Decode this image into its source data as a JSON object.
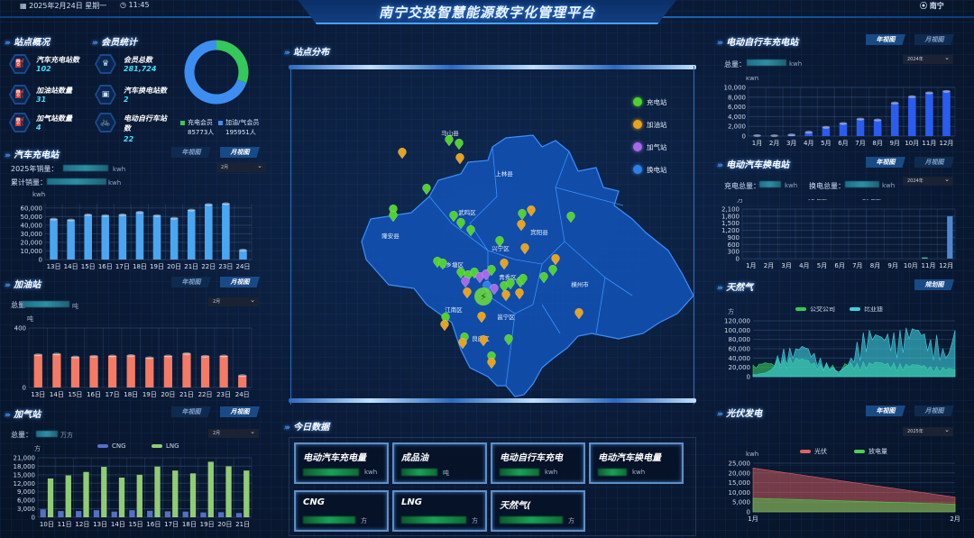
{
  "header": {
    "date": "2025年2月24日 星期一",
    "time": "11:45",
    "title": "南宁交投智慧能源数字化管理平台",
    "location": "南宁"
  },
  "overview": {
    "title": "站点概况",
    "items": [
      {
        "label": "汽车充电站数",
        "value": "102",
        "icon": "charging-pile-icon"
      },
      {
        "label": "加油站数量",
        "value": "31",
        "icon": "fuel-pump-icon"
      },
      {
        "label": "加气站数量",
        "value": "4",
        "icon": "gas-pump-icon"
      }
    ]
  },
  "members": {
    "title": "会员统计",
    "items": [
      {
        "label": "会员总数",
        "value": "281,724",
        "icon": "crown-icon"
      },
      {
        "label": "汽车换电站数",
        "value": "2",
        "icon": "battery-icon"
      },
      {
        "label": "电动自行车站数",
        "value": "22",
        "icon": "bike-icon"
      }
    ],
    "donut": [
      {
        "name": "充电会员",
        "value": 85773,
        "display": "85773人",
        "color": "#35c85a"
      },
      {
        "name": "加油/气会员",
        "value": 195951,
        "display": "195951人",
        "color": "#3d8ef0"
      }
    ]
  },
  "view_buttons": {
    "year": "年视图",
    "month": "月视图",
    "plan": "规划图"
  },
  "car_charging": {
    "title": "汽车充电站",
    "year_sales_label": "2025年销量：",
    "cum_sales_label": "累计销量：",
    "unit": "kwh",
    "dropdown": "2月"
  },
  "oil": {
    "title": "加油站",
    "total_label": "总量",
    "unit": "吨",
    "dropdown": "2月"
  },
  "gas": {
    "title": "加气站",
    "total_label": "总量：",
    "unit": "万方",
    "dropdown": "2月"
  },
  "ebike": {
    "title": "电动自行车充电站",
    "total_label": "总量：",
    "unit": "kwh",
    "dropdown": "2024年"
  },
  "swap": {
    "title": "电动汽车换电站",
    "charge_label": "充电总量：",
    "swap_label": "换电总量：",
    "unit": "kwh",
    "dropdown": "2024年"
  },
  "ngas": {
    "title": "天然气"
  },
  "pv": {
    "title": "光伏发电",
    "dropdown": "2025年"
  },
  "map": {
    "title": "站点分布",
    "legend": [
      {
        "label": "充电站",
        "color": "#4fd12f",
        "icon": "lightning-icon"
      },
      {
        "label": "加油站",
        "color": "#e8a21c",
        "icon": "fuel-icon"
      },
      {
        "label": "加气站",
        "color": "#a56ae8",
        "icon": "flame-icon"
      },
      {
        "label": "换电站",
        "color": "#2f7fe8",
        "icon": "battery-icon"
      }
    ],
    "districts": [
      "马山县",
      "上林县",
      "武鸣区",
      "宾阳县",
      "隆安县",
      "兴宁区",
      "西乡塘区",
      "青秀区",
      "江南区",
      "邕宁区",
      "良庆区",
      "横州市"
    ]
  },
  "today": {
    "title": "今日数据",
    "cards": [
      {
        "label": "电动汽车充电量",
        "unit": "kwh"
      },
      {
        "label": "成品油",
        "unit": "吨"
      },
      {
        "label": "电动自行车充电",
        "unit": "kwh"
      },
      {
        "label": "电动汽车换电量",
        "unit": "kwh"
      },
      {
        "label": "CNG",
        "unit": "方"
      },
      {
        "label": "LNG",
        "unit": "方"
      },
      {
        "label": "天然气(",
        "unit": "方"
      }
    ]
  },
  "chart_data": [
    {
      "id": "car",
      "type": "bar",
      "ylabel": "kwh",
      "categories": [
        "13日",
        "14日",
        "15日",
        "16日",
        "17日",
        "18日",
        "19日",
        "20日",
        "21日",
        "22日",
        "23日",
        "24日"
      ],
      "values": [
        47000,
        46000,
        52000,
        51000,
        52000,
        55000,
        51000,
        48000,
        57500,
        64000,
        65000,
        11000
      ],
      "ylim": [
        0,
        65000
      ],
      "yticks": [
        0,
        10000,
        20000,
        30000,
        40000,
        50000,
        60000
      ],
      "color": "#4aa6f0",
      "grid": true
    },
    {
      "id": "oil",
      "type": "bar",
      "ylabel": "吨",
      "categories": [
        "13日",
        "14日",
        "15日",
        "16日",
        "17日",
        "18日",
        "19日",
        "20日",
        "21日",
        "22日",
        "23日",
        "24日"
      ],
      "values": [
        220,
        225,
        205,
        210,
        212,
        215,
        200,
        212,
        228,
        210,
        212,
        80
      ],
      "ylim": [
        0,
        400
      ],
      "yticks": [
        0,
        400
      ],
      "color": "#f47a66",
      "grid": true
    },
    {
      "id": "gas",
      "type": "bar",
      "ylabel": "方",
      "categories": [
        "10日",
        "11日",
        "12日",
        "13日",
        "14日",
        "15日",
        "16日",
        "17日",
        "18日",
        "19日",
        "20日",
        "21日"
      ],
      "series": [
        {
          "name": "CNG",
          "color": "#5470c6",
          "values": [
            2800,
            2200,
            2200,
            2500,
            2000,
            2500,
            2300,
            2100,
            2000,
            1700,
            1800,
            1500
          ]
        },
        {
          "name": "LNG",
          "color": "#91cc75",
          "values": [
            13700,
            14800,
            16000,
            17800,
            14000,
            15000,
            17900,
            16500,
            15500,
            19600,
            18000,
            16500
          ]
        }
      ],
      "ylim": [
        0,
        21000
      ],
      "yticks": [
        0,
        3000,
        6000,
        9000,
        12000,
        15000,
        18000,
        21000
      ],
      "legend": "top",
      "grid": true
    },
    {
      "id": "ebike",
      "type": "bar",
      "ylabel": "kwh",
      "categories": [
        "1月",
        "2月",
        "3月",
        "4月",
        "5月",
        "6月",
        "7月",
        "8月",
        "9月",
        "10月",
        "11月",
        "12月"
      ],
      "values": [
        100,
        80,
        250,
        800,
        1800,
        2600,
        3500,
        3300,
        6800,
        8100,
        8900,
        9200
      ],
      "ylim": [
        0,
        10000
      ],
      "yticks": [
        0,
        2000,
        4000,
        6000,
        8000,
        10000
      ],
      "color": "#2a5cf0",
      "grid": true
    },
    {
      "id": "swap",
      "type": "bar",
      "ylabel": "方",
      "categories": [
        "1月",
        "2月",
        "3月",
        "4月",
        "5月",
        "6月",
        "7月",
        "8月",
        "9月",
        "10月",
        "11月",
        "12月"
      ],
      "series": [
        {
          "name": "充电量",
          "color": "#4fc6a0",
          "values": [
            0,
            0,
            0,
            0,
            0,
            0,
            0,
            0,
            0,
            0,
            50,
            0
          ]
        },
        {
          "name": "换电量",
          "color": "#4f86d0",
          "values": [
            0,
            0,
            0,
            0,
            0,
            0,
            0,
            0,
            0,
            0,
            0,
            1800
          ]
        }
      ],
      "ylim": [
        0,
        2100
      ],
      "yticks": [
        0,
        300,
        600,
        900,
        1200,
        1500,
        1800,
        2100
      ],
      "legend": "top",
      "grid": true
    },
    {
      "id": "ngas",
      "type": "area",
      "ylabel": "方",
      "series": [
        {
          "name": "公交公司",
          "color": "#35c85a",
          "values": [
            25000,
            27000,
            30000,
            28000,
            38000,
            40000,
            42000,
            40000,
            38000,
            35000,
            30000,
            28000,
            27000,
            25000,
            5000,
            28000,
            30000,
            29000,
            32000,
            30000,
            31000,
            30000,
            29000,
            30000,
            28000,
            27000,
            26000,
            25000,
            24000,
            22000,
            22000,
            20000,
            18000,
            15000
          ]
        },
        {
          "name": "比亚迪",
          "color": "#3fd0e0",
          "values": [
            5000,
            6000,
            8000,
            15000,
            45000,
            60000,
            62000,
            60000,
            65000,
            60000,
            50000,
            40000,
            30000,
            20000,
            10000,
            20000,
            40000,
            75000,
            95000,
            100000,
            90000,
            85000,
            92000,
            95000,
            100000,
            105000,
            103000,
            100000,
            92000,
            80000,
            90000,
            60000,
            50000,
            100000
          ]
        }
      ],
      "ylim": [
        0,
        120000
      ],
      "yticks": [
        0,
        20000,
        40000,
        60000,
        80000,
        100000,
        120000
      ],
      "legend": "top",
      "grid": true
    },
    {
      "id": "pv",
      "type": "area",
      "ylabel": "kwh",
      "categories": [
        "1月",
        "2月"
      ],
      "series": [
        {
          "name": "光伏",
          "color": "#e06060",
          "values": [
            22500,
            7500
          ]
        },
        {
          "name": "放电量",
          "color": "#4fd04f",
          "values": [
            7000,
            4000
          ]
        }
      ],
      "ylim": [
        0,
        25000
      ],
      "yticks": [
        0,
        5000,
        10000,
        15000,
        20000,
        25000
      ],
      "legend": "top",
      "grid": true
    }
  ]
}
